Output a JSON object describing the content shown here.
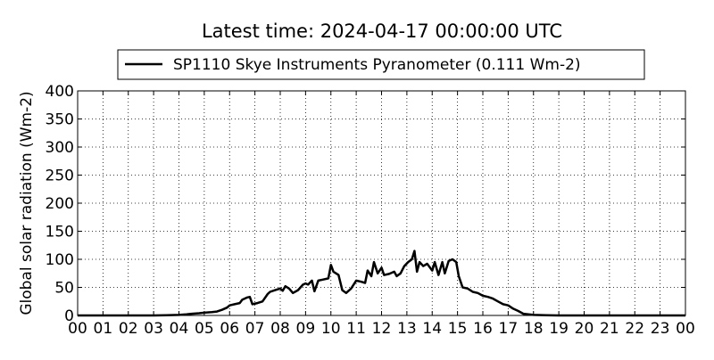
{
  "chart_data": {
    "type": "line",
    "title": "Latest time: 2024-04-17 00:00:00 UTC",
    "xlabel": "",
    "ylabel": "Global solar radiation (Wm-2)",
    "xlim": [
      0,
      24
    ],
    "ylim": [
      0,
      400
    ],
    "grid": true,
    "legend_placement": "top-center",
    "xticks": [
      0,
      1,
      2,
      3,
      4,
      5,
      6,
      7,
      8,
      9,
      10,
      11,
      12,
      13,
      14,
      15,
      16,
      17,
      18,
      19,
      20,
      21,
      22,
      23,
      24
    ],
    "xtick_labels": [
      "00",
      "01",
      "02",
      "03",
      "04",
      "05",
      "06",
      "07",
      "08",
      "09",
      "10",
      "11",
      "12",
      "13",
      "14",
      "15",
      "16",
      "17",
      "18",
      "19",
      "20",
      "21",
      "22",
      "23",
      "00"
    ],
    "yticks": [
      0,
      50,
      100,
      150,
      200,
      250,
      300,
      350,
      400
    ],
    "ytick_labels": [
      "0",
      "50",
      "100",
      "150",
      "200",
      "250",
      "300",
      "350",
      "400"
    ],
    "series": [
      {
        "name": "SP1110 Skye Instruments Pyranometer (0.111 Wm-2)",
        "color": "#000000",
        "x": [
          0,
          1,
          2,
          3,
          3.5,
          4.0,
          4.3,
          4.5,
          4.8,
          5.0,
          5.3,
          5.5,
          5.7,
          5.9,
          6.0,
          6.2,
          6.4,
          6.5,
          6.7,
          6.8,
          6.9,
          7.1,
          7.3,
          7.5,
          7.6,
          7.8,
          8.0,
          8.1,
          8.2,
          8.35,
          8.5,
          8.7,
          8.9,
          9.0,
          9.1,
          9.25,
          9.35,
          9.5,
          9.7,
          9.9,
          10.0,
          10.1,
          10.3,
          10.45,
          10.6,
          10.8,
          11.0,
          11.2,
          11.35,
          11.45,
          11.6,
          11.7,
          11.85,
          12.0,
          12.1,
          12.3,
          12.5,
          12.6,
          12.75,
          12.9,
          13.05,
          13.2,
          13.3,
          13.4,
          13.5,
          13.65,
          13.8,
          14.0,
          14.1,
          14.25,
          14.4,
          14.5,
          14.65,
          14.8,
          14.95,
          15.05,
          15.2,
          15.4,
          15.6,
          15.8,
          16.0,
          16.2,
          16.4,
          16.6,
          16.8,
          17.0,
          17.2,
          17.4,
          17.6,
          18.0,
          18.5,
          19,
          20,
          21,
          22,
          23,
          24
        ],
        "y": [
          0,
          0,
          0,
          0,
          0.5,
          1,
          2,
          3,
          4,
          5,
          6,
          7,
          10,
          14,
          18,
          20,
          22,
          28,
          32,
          33,
          20,
          22,
          25,
          38,
          42,
          45,
          48,
          44,
          52,
          48,
          40,
          45,
          55,
          57,
          55,
          62,
          43,
          62,
          64,
          66,
          90,
          78,
          72,
          45,
          40,
          48,
          62,
          60,
          58,
          80,
          70,
          95,
          75,
          85,
          72,
          74,
          78,
          70,
          75,
          88,
          95,
          100,
          115,
          78,
          95,
          88,
          92,
          80,
          95,
          72,
          95,
          75,
          97,
          100,
          95,
          70,
          50,
          48,
          42,
          40,
          35,
          33,
          30,
          25,
          20,
          18,
          12,
          8,
          3,
          1,
          0.5,
          0,
          0,
          0,
          0,
          0,
          0
        ]
      }
    ]
  }
}
